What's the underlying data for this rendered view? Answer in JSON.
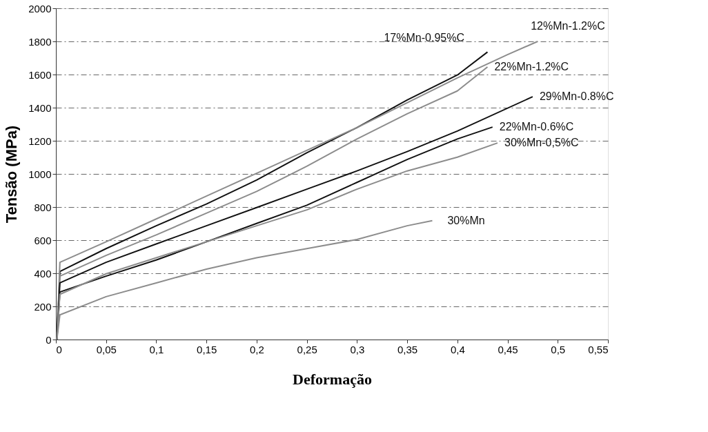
{
  "chart_data": {
    "type": "line",
    "xlabel": "Deformação",
    "ylabel": "Tensão (MPa)",
    "xlim": [
      0,
      0.55
    ],
    "ylim": [
      0,
      2000
    ],
    "xticks": [
      0,
      {
        "value": 0.05,
        "label": "0,05"
      },
      {
        "value": 0.1,
        "label": "0,1"
      },
      {
        "value": 0.15,
        "label": "0,15"
      },
      {
        "value": 0.2,
        "label": "0,2"
      },
      {
        "value": 0.25,
        "label": "0,25"
      },
      {
        "value": 0.3,
        "label": "0,3"
      },
      {
        "value": 0.35,
        "label": "0,35"
      },
      {
        "value": 0.4,
        "label": "0,4"
      },
      {
        "value": 0.45,
        "label": "0,45"
      },
      {
        "value": 0.5,
        "label": "0,5"
      },
      {
        "value": 0.55,
        "label": "0,55"
      }
    ],
    "yticks": [
      0,
      200,
      400,
      600,
      800,
      1000,
      1200,
      1400,
      1600,
      1800,
      2000
    ],
    "grid": "y",
    "line_style": "solid",
    "series": [
      {
        "name": "17%Mn-0.95%C",
        "color": "#111111",
        "x": [
          0.001,
          0.004,
          0.05,
          0.1,
          0.15,
          0.2,
          0.25,
          0.3,
          0.35,
          0.4,
          0.43
        ],
        "values": [
          0,
          411,
          549,
          687,
          818,
          963,
          1128,
          1280,
          1446,
          1597,
          1736
        ]
      },
      {
        "name": "12%Mn-1.2%C",
        "color": "#8c8c8c",
        "x": [
          0.001,
          0.004,
          0.05,
          0.1,
          0.15,
          0.2,
          0.25,
          0.3,
          0.35,
          0.4,
          0.45,
          0.48
        ],
        "values": [
          0,
          466,
          590,
          728,
          866,
          1004,
          1142,
          1280,
          1430,
          1580,
          1720,
          1800
        ]
      },
      {
        "name": "22%Mn-1.2%C",
        "color": "#8c8c8c",
        "x": [
          0.001,
          0.004,
          0.05,
          0.1,
          0.15,
          0.2,
          0.25,
          0.3,
          0.35,
          0.4,
          0.43
        ],
        "values": [
          0,
          383,
          508,
          632,
          763,
          894,
          1046,
          1211,
          1363,
          1501,
          1646
        ]
      },
      {
        "name": "29%Mn-0.8%C",
        "color": "#111111",
        "x": [
          0.001,
          0.004,
          0.05,
          0.1,
          0.15,
          0.2,
          0.25,
          0.3,
          0.35,
          0.4,
          0.475
        ],
        "values": [
          0,
          342,
          466,
          577,
          687,
          797,
          908,
          1018,
          1135,
          1259,
          1466
        ]
      },
      {
        "name": "22%Mn-0.6%C",
        "color": "#111111",
        "x": [
          0.001,
          0.004,
          0.05,
          0.1,
          0.15,
          0.2,
          0.25,
          0.3,
          0.35,
          0.4,
          0.435
        ],
        "values": [
          0,
          287,
          383,
          480,
          590,
          701,
          811,
          949,
          1087,
          1211,
          1283
        ]
      },
      {
        "name": "30%Mn-0,5%C",
        "color": "#8c8c8c",
        "x": [
          0.001,
          0.004,
          0.05,
          0.1,
          0.15,
          0.2,
          0.25,
          0.3,
          0.35,
          0.4,
          0.44
        ],
        "values": [
          0,
          273,
          397,
          494,
          590,
          687,
          783,
          908,
          1018,
          1101,
          1187
        ]
      },
      {
        "name": "30%Mn",
        "color": "#8c8c8c",
        "x": [
          0.001,
          0.004,
          0.05,
          0.1,
          0.15,
          0.2,
          0.25,
          0.3,
          0.35,
          0.375
        ],
        "values": [
          0,
          149,
          259,
          342,
          425,
          494,
          549,
          604,
          687,
          718
        ]
      }
    ]
  }
}
